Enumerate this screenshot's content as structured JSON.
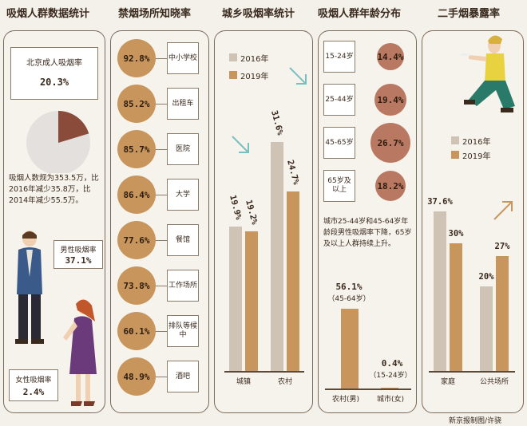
{
  "titles": [
    "吸烟人群数据统计",
    "禁烟场所知晓率",
    "城乡吸烟率统计",
    "吸烟人群年龄分布",
    "二手烟暴露率"
  ],
  "panel1": {
    "box_label": "北京成人吸烟率",
    "box_value": "20.3%",
    "note": "吸烟人数规为353.5万，比2016年减少35.8万，比2014年减少55.5万。",
    "male_label": "男性吸烟率",
    "male_value": "37.1%",
    "female_label": "女性吸烟率",
    "female_value": "2.4%"
  },
  "panel2": {
    "items": [
      {
        "value": "92.8%",
        "label": "中小学校"
      },
      {
        "value": "85.2%",
        "label": "出租车"
      },
      {
        "value": "85.7%",
        "label": "医院"
      },
      {
        "value": "86.4%",
        "label": "大学"
      },
      {
        "value": "77.6%",
        "label": "餐馆"
      },
      {
        "value": "73.8%",
        "label": "工作场所"
      },
      {
        "value": "60.1%",
        "label": "排队等候中"
      },
      {
        "value": "48.9%",
        "label": "酒吧"
      }
    ]
  },
  "panel4": {
    "items": [
      {
        "label": "15-24岁",
        "value": "14.4%"
      },
      {
        "label": "25-44岁",
        "value": "19.4%"
      },
      {
        "label": "45-65岁",
        "value": "26.7%"
      },
      {
        "label": "65岁及以上",
        "value": "18.2%"
      }
    ],
    "note": "城市25-44岁和45-64岁年龄段男性吸烟率下降，65岁及以上人群持续上升。",
    "bar_left_value": "56.1%",
    "bar_left_sub": "（45-64岁）",
    "bar_right_value": "0.4%",
    "bar_right_sub": "（15-24岁）",
    "cat_left": "农村(男)",
    "cat_right": "城市(女)"
  },
  "credit": "新京报制图/许骁",
  "colors": {
    "y2016": "#cfc3b6",
    "y2019": "#c8955c",
    "circle": "#c8955c",
    "age": "#b97861"
  },
  "chart_data": [
    {
      "type": "pie",
      "title": "北京成人吸烟率",
      "values": [
        20.3,
        79.7
      ],
      "labels": [
        "20.3%",
        ""
      ]
    },
    {
      "type": "bar",
      "title": "城乡吸烟率统计",
      "categories": [
        "城镇",
        "农村"
      ],
      "series": [
        {
          "name": "2016年",
          "values": [
            19.9,
            31.6
          ]
        },
        {
          "name": "2019年",
          "values": [
            19.2,
            24.7
          ]
        }
      ],
      "value_labels": [
        [
          "19.9%",
          "31.6%"
        ],
        [
          "19.2%",
          "24.7%"
        ]
      ],
      "ylim": [
        0,
        33
      ]
    },
    {
      "type": "bar",
      "title": "吸烟人群年龄分布",
      "categories": [
        "农村(男)",
        "城市(女)"
      ],
      "values": [
        56.1,
        0.4
      ],
      "ylim": [
        0,
        56.1
      ]
    },
    {
      "type": "bar",
      "title": "二手烟暴露率",
      "categories": [
        "家庭",
        "公共场所"
      ],
      "series": [
        {
          "name": "2016年",
          "values": [
            37.6,
            20
          ]
        },
        {
          "name": "2019年",
          "values": [
            30,
            27
          ]
        }
      ],
      "value_labels": [
        [
          "37.6%",
          "20%"
        ],
        [
          "30%",
          "27%"
        ]
      ],
      "ylim": [
        0,
        40
      ]
    }
  ]
}
